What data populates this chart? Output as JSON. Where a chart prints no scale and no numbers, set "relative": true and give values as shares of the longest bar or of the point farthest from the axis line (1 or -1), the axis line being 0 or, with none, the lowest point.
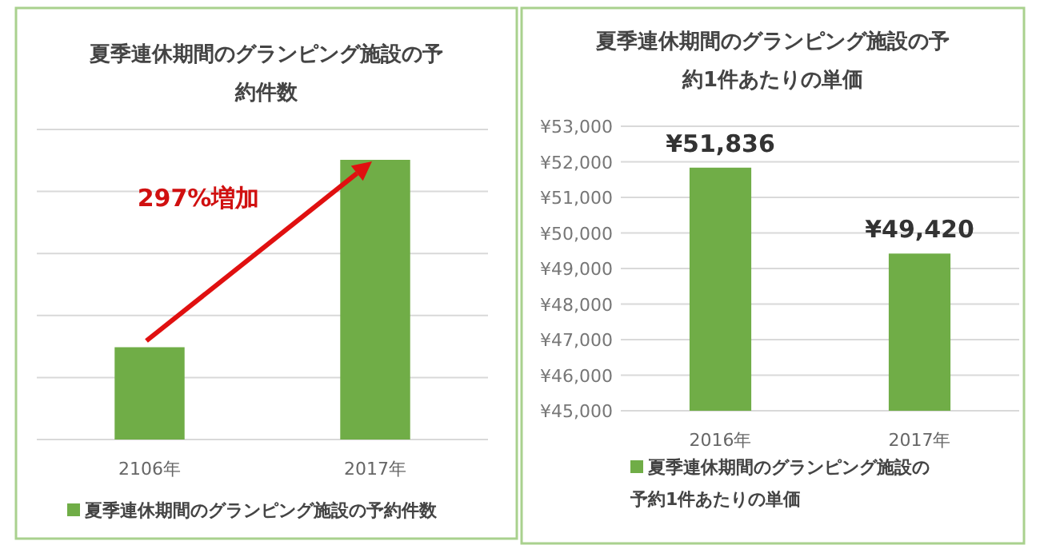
{
  "chart_data": [
    {
      "type": "bar",
      "title": "夏季連休期間のグランピング施設の予約件数",
      "categories": [
        "2106年",
        "2017年"
      ],
      "relative": true,
      "grid": true,
      "legend": "bottom",
      "annotations": [
        "297%増加"
      ],
      "series": [
        {
          "name": "夏季連休期間のグランピング施設の予約件数",
          "color": "#70ad47",
          "values": [
            0.33,
            1
          ]
        }
      ]
    },
    {
      "type": "bar",
      "title": "夏季連休期間のグランピング施設の予約1件あたりの単価",
      "categories": [
        "2016年",
        "2017年"
      ],
      "grid": true,
      "legend": "bottom",
      "data_labels": true,
      "ylim": [
        45000,
        53000
      ],
      "yticks": [
        {
          "value": 45000,
          "label": "¥45,000"
        },
        {
          "value": 46000,
          "label": "¥46,000"
        },
        {
          "value": 47000,
          "label": "¥47,000"
        },
        {
          "value": 48000,
          "label": "¥48,000"
        },
        {
          "value": 49000,
          "label": "¥49,000"
        },
        {
          "value": 50000,
          "label": "¥50,000"
        },
        {
          "value": 51000,
          "label": "¥51,000"
        },
        {
          "value": 52000,
          "label": "¥52,000"
        },
        {
          "value": 53000,
          "label": "¥53,000"
        }
      ],
      "series": [
        {
          "name": "夏季連休期間のグランピング施設の予約1件あたりの単価",
          "color": "#70ad47",
          "values": [
            51836,
            49420
          ],
          "value_labels": [
            "¥51,836",
            "¥49,420"
          ]
        }
      ]
    }
  ]
}
